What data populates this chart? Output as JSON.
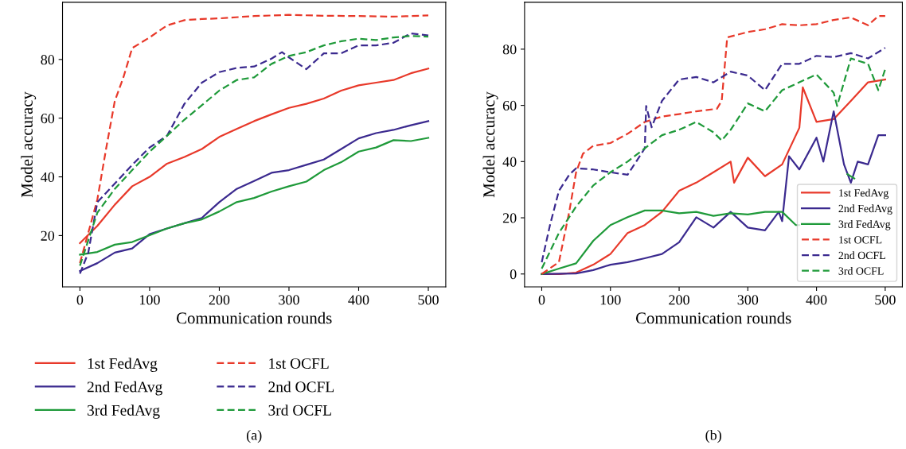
{
  "chart_data": [
    {
      "type": "line",
      "xlabel": "Communication rounds",
      "ylabel": "Model accuracy",
      "xlim": [
        -25,
        525
      ],
      "ylim": [
        2.5,
        99.5
      ],
      "xticks": [
        0,
        100,
        200,
        300,
        400,
        500
      ],
      "yticks": [
        20,
        40,
        60,
        80
      ],
      "legend": "bottom",
      "grid": false,
      "annotations": [
        "(a)"
      ],
      "series": [
        {
          "name": "1st FedAvg",
          "color": "#e8392a",
          "line_style": "solid",
          "x": [
            0,
            25,
            50,
            75,
            100,
            125,
            150,
            175,
            200,
            225,
            250,
            275,
            300,
            325,
            350,
            375,
            400,
            425,
            450,
            475,
            500
          ],
          "values": [
            17.4,
            23.3,
            30.5,
            36.8,
            40,
            44.5,
            46.8,
            49.5,
            53.6,
            56.3,
            59,
            61.3,
            63.5,
            64.9,
            66.7,
            69.4,
            71.2,
            72.1,
            73,
            75.3,
            76.9
          ]
        },
        {
          "name": "2nd FedAvg",
          "color": "#3b2a8f",
          "line_style": "solid",
          "x": [
            0,
            25,
            50,
            75,
            100,
            125,
            150,
            175,
            200,
            225,
            250,
            275,
            300,
            325,
            350,
            375,
            400,
            425,
            450,
            475,
            500
          ],
          "values": [
            7.9,
            10.6,
            14.2,
            15.6,
            20.5,
            22.4,
            24.2,
            26,
            31.4,
            35.9,
            38.6,
            41.4,
            42.3,
            44.1,
            45.9,
            49.5,
            53.1,
            54.9,
            56,
            57.6,
            59
          ]
        },
        {
          "name": "3rd FedAvg",
          "color": "#1f9a3a",
          "line_style": "solid",
          "x": [
            0,
            25,
            50,
            75,
            100,
            125,
            150,
            175,
            200,
            225,
            250,
            275,
            300,
            325,
            350,
            375,
            400,
            425,
            450,
            475,
            500
          ],
          "values": [
            13.5,
            14.4,
            16.9,
            17.8,
            20.1,
            22.4,
            24.2,
            25.5,
            28.2,
            31.4,
            32.8,
            35,
            36.8,
            38.4,
            42.3,
            45,
            48.6,
            50,
            52.5,
            52.2,
            53.3
          ]
        },
        {
          "name": "1st OCFL",
          "color": "#e8392a",
          "line_style": "dashed",
          "x": [
            0,
            12.5,
            25,
            37.5,
            50,
            62.5,
            75,
            100,
            125,
            150,
            175,
            200,
            250,
            300,
            350,
            400,
            450,
            500
          ],
          "values": [
            10.6,
            21.4,
            32.3,
            49.5,
            65.8,
            74,
            83.9,
            87.5,
            91.6,
            93.4,
            93.8,
            94,
            94.8,
            95.2,
            94.9,
            94.8,
            94.6,
            95
          ]
        },
        {
          "name": "2nd OCFL",
          "color": "#3b2a8f",
          "line_style": "dashed",
          "x": [
            0,
            12,
            25,
            50,
            75,
            100,
            125,
            150,
            175,
            200,
            225,
            250,
            275,
            290,
            300,
            325,
            350,
            375,
            400,
            425,
            450,
            475,
            500
          ],
          "values": [
            7,
            14.2,
            31.4,
            37.7,
            44.1,
            50,
            54,
            64.9,
            72.1,
            75.7,
            77.1,
            77.6,
            80.3,
            82.5,
            80.7,
            76.7,
            82.1,
            82.1,
            84.8,
            84.8,
            85.7,
            88.9,
            88.2
          ]
        },
        {
          "name": "3rd OCFL",
          "color": "#1f9a3a",
          "line_style": "dashed",
          "x": [
            0,
            25,
            50,
            75,
            100,
            125,
            150,
            175,
            200,
            225,
            250,
            275,
            300,
            325,
            350,
            375,
            400,
            425,
            450,
            475,
            500
          ],
          "values": [
            9.7,
            27.8,
            35.9,
            42.3,
            48.6,
            54,
            59.5,
            64.4,
            69.4,
            73,
            73.9,
            78.5,
            81.2,
            82.5,
            84.8,
            86.2,
            87.1,
            86.6,
            87.5,
            88,
            87.8
          ]
        }
      ]
    },
    {
      "type": "line",
      "xlabel": "Communication rounds",
      "ylabel": "Model accuracy",
      "xlim": [
        -25,
        525
      ],
      "ylim": [
        -4.6,
        96.7
      ],
      "xticks": [
        0,
        100,
        200,
        300,
        400,
        500
      ],
      "yticks": [
        0,
        20,
        40,
        60,
        80
      ],
      "legend": "lower right",
      "grid": false,
      "annotations": [
        "(b)"
      ],
      "series": [
        {
          "name": "1st FedAvg",
          "color": "#e8392a",
          "line_style": "solid",
          "x": [
            0,
            25,
            50,
            75,
            100,
            125,
            150,
            175,
            200,
            225,
            250,
            275,
            280,
            300,
            325,
            350,
            375,
            380,
            400,
            425,
            450,
            475,
            500
          ],
          "values": [
            0,
            0,
            0.5,
            3.3,
            7.1,
            14.6,
            17.4,
            22.1,
            29.6,
            32.5,
            36.2,
            40,
            32.5,
            41.4,
            34.8,
            39,
            52,
            66.4,
            54.1,
            55.1,
            61.6,
            68.2,
            69.2
          ]
        },
        {
          "name": "2nd FedAvg",
          "color": "#3b2a8f",
          "line_style": "solid",
          "x": [
            0,
            50,
            75,
            100,
            125,
            150,
            175,
            200,
            225,
            250,
            275,
            300,
            325,
            345,
            350,
            360,
            375,
            400,
            410,
            425,
            440,
            450,
            460,
            475,
            490,
            500
          ],
          "values": [
            0,
            0.2,
            1.4,
            3.3,
            4.2,
            5.6,
            7.1,
            11.3,
            20.2,
            16.5,
            22.1,
            16.5,
            15.5,
            22.1,
            18.8,
            41.9,
            37.2,
            48.5,
            40,
            57.9,
            39,
            32.5,
            40,
            39,
            49.4,
            49.4
          ]
        },
        {
          "name": "3rd FedAvg",
          "color": "#1f9a3a",
          "line_style": "solid",
          "x": [
            0,
            25,
            50,
            75,
            100,
            125,
            150,
            175,
            200,
            225,
            250,
            275,
            300,
            325,
            350,
            370,
            375,
            400,
            425,
            445,
            455
          ],
          "values": [
            0,
            1.9,
            3.8,
            11.8,
            17.4,
            20.2,
            22.6,
            22.6,
            21.6,
            22.1,
            20.7,
            21.6,
            21.2,
            22.1,
            22.1,
            17.4,
            17.4,
            null,
            null,
            35.5,
            34
          ]
        },
        {
          "name": "1st OCFL",
          "color": "#e8392a",
          "line_style": "dashed",
          "x": [
            0,
            25,
            40,
            50,
            60,
            75,
            100,
            125,
            150,
            175,
            200,
            225,
            255,
            262,
            270,
            300,
            325,
            350,
            375,
            400,
            425,
            450,
            475,
            490,
            500
          ],
          "values": [
            0,
            4.2,
            22.1,
            36.2,
            42.8,
            45.6,
            46.6,
            49.9,
            54.1,
            56,
            56.9,
            57.9,
            58.8,
            61.6,
            84.2,
            86.1,
            87.1,
            88.9,
            88.5,
            88.9,
            90.4,
            91.3,
            88.5,
            91.8,
            91.8
          ]
        },
        {
          "name": "2nd OCFL",
          "color": "#3b2a8f",
          "line_style": "dashed",
          "x": [
            0,
            12,
            25,
            40,
            50,
            75,
            100,
            125,
            150,
            152,
            160,
            175,
            200,
            225,
            250,
            275,
            300,
            325,
            350,
            375,
            400,
            425,
            450,
            475,
            500
          ],
          "values": [
            4.2,
            17.4,
            29.6,
            35.3,
            37.6,
            37.2,
            36.2,
            35.3,
            44.7,
            59.8,
            52.2,
            61.6,
            69.2,
            70.1,
            68.2,
            72,
            70.6,
            65.4,
            74.8,
            74.8,
            77.6,
            77.2,
            78.6,
            76.7,
            80.5
          ]
        },
        {
          "name": "3rd OCFL",
          "color": "#1f9a3a",
          "line_style": "dashed",
          "x": [
            0,
            25,
            50,
            75,
            100,
            125,
            150,
            175,
            200,
            225,
            250,
            262,
            275,
            300,
            325,
            350,
            375,
            400,
            425,
            430,
            450,
            475,
            490,
            500
          ],
          "values": [
            1.9,
            14.6,
            24,
            31.5,
            36.2,
            40,
            44.7,
            49.4,
            51.3,
            54.1,
            50.4,
            47.5,
            51.3,
            60.7,
            57.9,
            65.4,
            68.2,
            71,
            64.5,
            59.8,
            76.7,
            74.8,
            65.4,
            72.9
          ]
        }
      ]
    }
  ]
}
